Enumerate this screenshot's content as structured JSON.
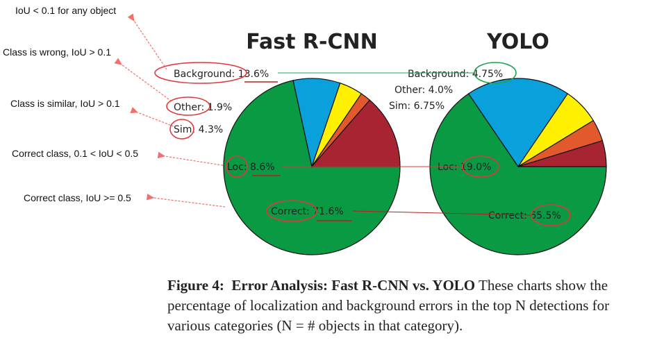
{
  "annotations": [
    {
      "label": "IoU < 0.1 for any object"
    },
    {
      "label": "Class is wrong, IoU > 0.1"
    },
    {
      "label": "Class is similar, IoU > 0.1"
    },
    {
      "label": "Correct class, 0.1 < IoU < 0.5"
    },
    {
      "label": "Correct class, IoU >= 0.5"
    }
  ],
  "colors": {
    "correct": "#0a9a44",
    "loc": "#0aa0dc",
    "sim": "#fff100",
    "other": "#e25a2c",
    "background": "#a82432",
    "annotation_red": "#e0383b",
    "annotation_green": "#21a351",
    "underline": "#b81e1e"
  },
  "caption": {
    "figure_label": "Figure 4:",
    "title": "Error Analysis: Fast R-CNN vs. YOLO",
    "body": "These charts show the percentage of localization and background errors in the top N detections for various categories (N = # objects in that category)."
  },
  "chart_data": [
    {
      "type": "pie",
      "title": "Fast R-CNN",
      "slices": [
        {
          "name": "Correct",
          "value": 71.6,
          "text": "Correct: 71.6%"
        },
        {
          "name": "Loc",
          "value": 8.6,
          "text": "Loc: 8.6%"
        },
        {
          "name": "Sim",
          "value": 4.3,
          "text": "Sim: 4.3%"
        },
        {
          "name": "Other",
          "value": 1.9,
          "text": "Other: 1.9%"
        },
        {
          "name": "Background",
          "value": 13.6,
          "text": "Background: 13.6%"
        }
      ]
    },
    {
      "type": "pie",
      "title": "YOLO",
      "slices": [
        {
          "name": "Correct",
          "value": 65.5,
          "text": "Correct: 65.5%"
        },
        {
          "name": "Loc",
          "value": 19.0,
          "text": "Loc: 19.0%"
        },
        {
          "name": "Sim",
          "value": 6.75,
          "text": "Sim: 6.75%"
        },
        {
          "name": "Other",
          "value": 4.0,
          "text": "Other: 4.0%"
        },
        {
          "name": "Background",
          "value": 4.75,
          "text": "Background: 4.75%"
        }
      ]
    }
  ]
}
